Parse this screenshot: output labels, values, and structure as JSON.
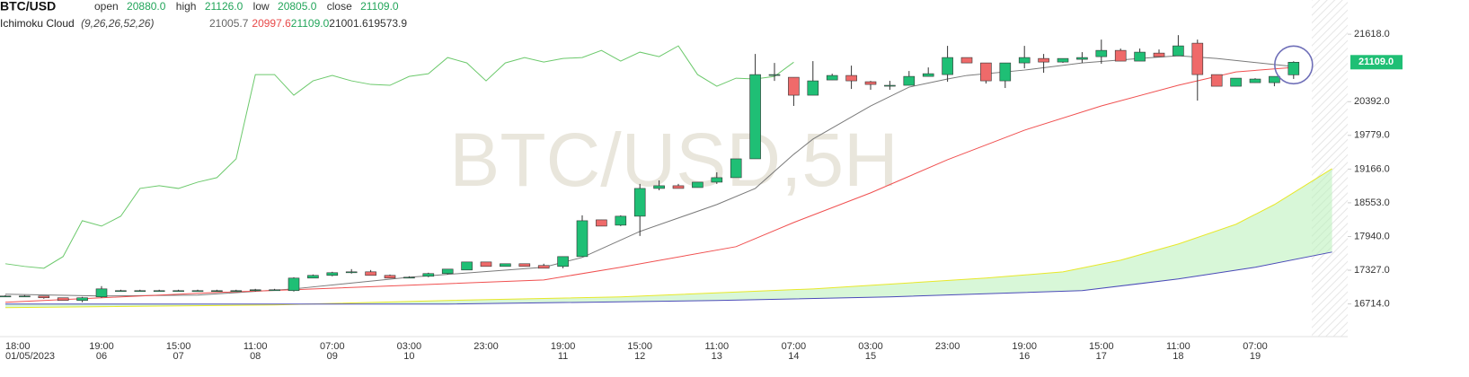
{
  "chart_data": {
    "type": "candlestick",
    "title": "BTC/USD",
    "watermark": "BTC/USD,5H",
    "ohlc_legend": [
      {
        "label": "open",
        "value": "20880.0"
      },
      {
        "label": "high",
        "value": "21126.0"
      },
      {
        "label": "low",
        "value": "20805.0"
      },
      {
        "label": "close",
        "value": "21109.0"
      }
    ],
    "indicator": {
      "name": "Ichimoku Cloud",
      "params": "(9,26,26,52,26)",
      "values": [
        {
          "text": "21005.7",
          "color": "#666666"
        },
        {
          "text": "20997.6",
          "color": "#e84a4a"
        },
        {
          "text": "21109.0",
          "color": "#22a55a"
        },
        {
          "text": "21001.6",
          "color": "#333333"
        },
        {
          "text": "19573.9",
          "color": "#333333"
        }
      ]
    },
    "categories": [
      "18:00",
      null,
      null,
      null,
      null,
      "19:00",
      null,
      null,
      null,
      "15:00",
      null,
      null,
      null,
      "11:00",
      null,
      null,
      null,
      "07:00",
      null,
      null,
      null,
      "03:00",
      null,
      null,
      null,
      "23:00",
      null,
      null,
      null,
      "19:00",
      null,
      null,
      null,
      "15:00",
      null,
      null,
      null,
      "11:00",
      null,
      null,
      null,
      "07:00",
      null,
      null,
      null,
      "03:00",
      null,
      null,
      null,
      "23:00",
      null,
      null,
      null,
      "19:00",
      null,
      null,
      null,
      "15:00",
      null,
      null,
      null,
      "11:00",
      null,
      null,
      null,
      "07:00",
      null,
      null
    ],
    "dates": [
      "01/05/2023",
      null,
      null,
      null,
      null,
      "06",
      null,
      null,
      null,
      "07",
      null,
      null,
      null,
      "08",
      null,
      null,
      null,
      "09",
      null,
      null,
      null,
      "10",
      null,
      null,
      null,
      null,
      null,
      null,
      null,
      "11",
      null,
      null,
      null,
      "12",
      null,
      null,
      null,
      "13",
      null,
      null,
      null,
      "14",
      null,
      null,
      null,
      "15",
      null,
      null,
      null,
      null,
      null,
      null,
      null,
      "16",
      null,
      null,
      null,
      "17",
      null,
      null,
      null,
      "18",
      null,
      null,
      null,
      "19",
      null,
      null
    ],
    "open": [
      16858,
      16858,
      16858,
      16826,
      16777,
      16842,
      16956,
      16956,
      16956,
      16956,
      16956,
      16956,
      16956,
      16956,
      16972,
      16956,
      17184,
      17233,
      17282,
      17298,
      17233,
      17200,
      17217,
      17266,
      17331,
      17477,
      17396,
      17445,
      17413,
      17396,
      17575,
      18243,
      18146,
      18309,
      18814,
      18863,
      18830,
      18928,
      19010,
      19352,
      20884,
      20835,
      20509,
      20786,
      20868,
      20754,
      20689,
      20689,
      20851,
      20884,
      21194,
      21096,
      20770,
      21096,
      21177,
      21112,
      21161,
      21210,
      21324,
      21129,
      21275,
      21226,
      21455,
      20884,
      20672,
      20737,
      20737,
      20880
    ],
    "high": [
      16874,
      16874,
      16858,
      16826,
      16842,
      17037,
      16972,
      16972,
      16972,
      16972,
      16972,
      16972,
      16972,
      16988,
      16988,
      17200,
      17249,
      17298,
      17347,
      17331,
      17249,
      17217,
      17282,
      17347,
      17477,
      17477,
      17445,
      17445,
      17445,
      17575,
      18325,
      18243,
      18325,
      18896,
      18960,
      18896,
      18928,
      19107,
      19352,
      21259,
      21096,
      20835,
      21129,
      20900,
      21047,
      20770,
      20770,
      20949,
      21014,
      21406,
      21194,
      21096,
      21096,
      21406,
      21259,
      21177,
      21292,
      21520,
      21357,
      21357,
      21341,
      21601,
      21520,
      20884,
      20819,
      20819,
      20851,
      21126
    ],
    "low": [
      16842,
      16842,
      16809,
      16777,
      16744,
      16826,
      16940,
      16940,
      16940,
      16940,
      16940,
      16940,
      16940,
      16940,
      16956,
      16940,
      17184,
      17217,
      17266,
      17233,
      17184,
      17184,
      17200,
      17249,
      17331,
      17396,
      17396,
      17396,
      17363,
      17363,
      17575,
      18129,
      18129,
      17950,
      18781,
      18814,
      18830,
      18896,
      19010,
      19352,
      20770,
      20314,
      20509,
      20786,
      20623,
      20607,
      20607,
      20689,
      20851,
      20754,
      21096,
      20721,
      20640,
      20998,
      20917,
      21096,
      21096,
      21080,
      21129,
      21129,
      21210,
      21226,
      20411,
      20672,
      20672,
      20737,
      20672,
      20805
    ],
    "close": [
      16858,
      16858,
      16826,
      16777,
      16826,
      16988,
      16956,
      16956,
      16956,
      16956,
      16956,
      16956,
      16956,
      16972,
      16972,
      17184,
      17233,
      17282,
      17298,
      17233,
      17184,
      17200,
      17266,
      17347,
      17477,
      17396,
      17445,
      17396,
      17363,
      17575,
      18227,
      18129,
      18309,
      18814,
      18863,
      18814,
      18928,
      19010,
      19352,
      20884,
      20884,
      20509,
      20770,
      20868,
      20770,
      20705,
      20689,
      20851,
      20900,
      21194,
      21096,
      20770,
      21096,
      21194,
      21112,
      21177,
      21194,
      21324,
      21129,
      21292,
      21210,
      21406,
      20884,
      20672,
      20819,
      20803,
      20851,
      21109
    ],
    "up_color": "#1fbf75",
    "down_color": "#ef6a6a",
    "lines": [
      {
        "color": "#6cc96c",
        "x": [
          0,
          1,
          2,
          3,
          4,
          5,
          6,
          7,
          8,
          9,
          10,
          11,
          12,
          13,
          14,
          15,
          16,
          17,
          18,
          19,
          20,
          21,
          22,
          23,
          24,
          25,
          26,
          27,
          28,
          29,
          30,
          31,
          32,
          33,
          34,
          35,
          36,
          37,
          38,
          39,
          40,
          41
        ],
        "values": [
          17445,
          17396,
          17363,
          17575,
          18227,
          18129,
          18309,
          18814,
          18863,
          18814,
          18928,
          19010,
          19352,
          20884,
          20884,
          20509,
          20770,
          20868,
          20770,
          20705,
          20689,
          20851,
          20900,
          21194,
          21096,
          20770,
          21096,
          21194,
          21112,
          21177,
          21194,
          21324,
          21129,
          21292,
          21210,
          21406,
          20884,
          20672,
          20819,
          20803,
          20851,
          21109
        ]
      },
      {
        "color": "#7a7a7a",
        "x": [
          0,
          5,
          10,
          15,
          21,
          28,
          30,
          33,
          37,
          39,
          41,
          42,
          45,
          47,
          49,
          50,
          53,
          56,
          59,
          61,
          63,
          67
        ],
        "values": [
          16891,
          16858,
          16874,
          16988,
          17200,
          17380,
          17559,
          18032,
          18521,
          18814,
          19434,
          19711,
          20314,
          20656,
          20803,
          20868,
          20966,
          21096,
          21177,
          21226,
          21177,
          21031
        ]
      },
      {
        "color": "#f05050",
        "x": [
          0,
          5,
          11,
          15,
          21,
          28,
          32,
          38,
          41,
          45,
          49,
          53,
          57,
          61,
          64,
          67
        ],
        "values": [
          16744,
          16826,
          16923,
          16972,
          17054,
          17151,
          17380,
          17755,
          18195,
          18733,
          19336,
          19873,
          20314,
          20689,
          20933,
          21014
        ]
      },
      {
        "color": "#e8e82a",
        "x": [
          0,
          14,
          23,
          32,
          42,
          51,
          55,
          58,
          61,
          64,
          66,
          69
        ],
        "values": [
          16646,
          16695,
          16777,
          16842,
          16988,
          17184,
          17298,
          17510,
          17803,
          18162,
          18521,
          19173
        ]
      },
      {
        "color": "#4a4ab8",
        "x": [
          0,
          23,
          37,
          46,
          56,
          61,
          65,
          69
        ],
        "values": [
          16711,
          16711,
          16777,
          16842,
          16956,
          17168,
          17380,
          17657
        ]
      }
    ],
    "cloud_color": "#b8f0b8",
    "ylim": [
      16120,
      22240
    ],
    "yticks": [
      {
        "value": 21618,
        "label": "21618.0"
      },
      {
        "value": 20392,
        "label": "20392.0"
      },
      {
        "value": 19779,
        "label": "19779.0"
      },
      {
        "value": 19166,
        "label": "19166.0"
      },
      {
        "value": 18553,
        "label": "18553.0"
      },
      {
        "value": 17940,
        "label": "17940.0"
      },
      {
        "value": 17327,
        "label": "17327.0"
      },
      {
        "value": 16714,
        "label": "16714.0"
      }
    ],
    "price_label": {
      "value": 21109,
      "label": "21109.0"
    },
    "grid": false
  }
}
